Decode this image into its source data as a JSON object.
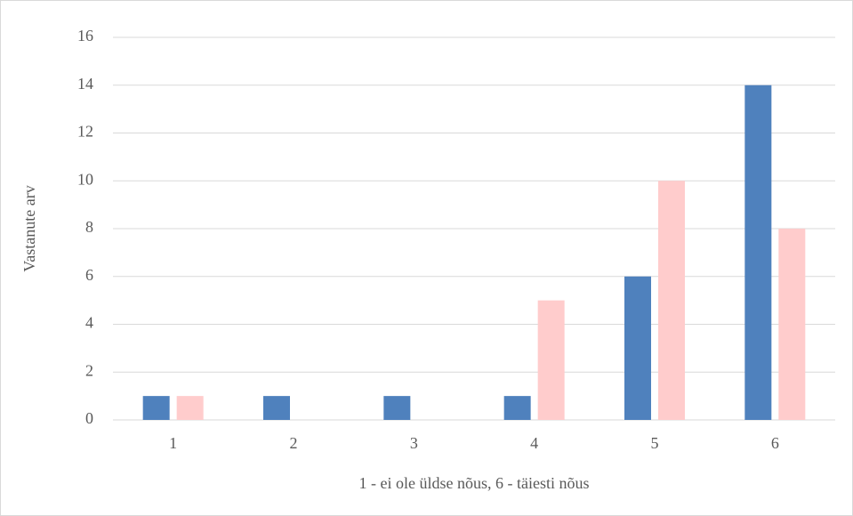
{
  "chart_data": {
    "type": "bar",
    "x_label": "1 - ei ole üldse nõus, 6 - täiesti nõus",
    "y_label": "Vastanute arv",
    "categories": [
      "1",
      "2",
      "3",
      "4",
      "5",
      "6"
    ],
    "series": [
      {
        "color": "#4f81bd",
        "values": [
          1,
          1,
          1,
          1,
          6,
          14
        ]
      },
      {
        "color": "#ffcccc",
        "values": [
          1,
          0,
          0,
          5,
          10,
          8
        ]
      }
    ],
    "ylim": [
      0,
      16
    ],
    "yticks": [
      0,
      2,
      4,
      6,
      8,
      10,
      12,
      14,
      16
    ],
    "grid": true
  }
}
